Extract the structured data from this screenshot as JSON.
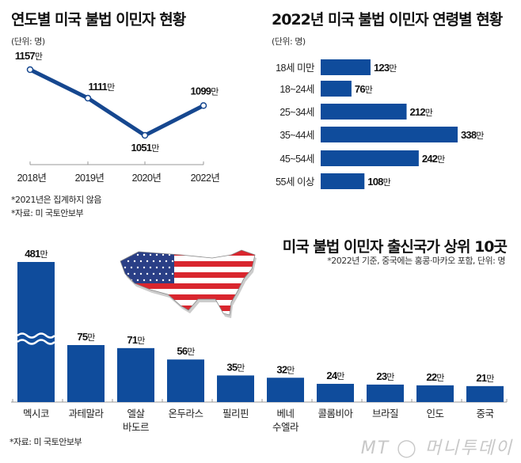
{
  "colors": {
    "bar": "#0f4c9c",
    "line": "#16478f",
    "text": "#111111",
    "logo": "#c8c8c8"
  },
  "chart_data": [
    {
      "type": "line",
      "title": "연도별 미국 불법 이민자 현황",
      "unit": "(단위: 명)",
      "categories": [
        "2018년",
        "2019년",
        "2020년",
        "2022년"
      ],
      "values": [
        11570000,
        11110000,
        10510000,
        10990000
      ],
      "labels": [
        "1157만",
        "1111만",
        "1051만",
        "1099만"
      ],
      "notes": [
        "*2021년은 집계하지 않음",
        "*자료: 미 국토안보부"
      ]
    },
    {
      "type": "bar",
      "orientation": "horizontal",
      "title": "2022년 미국 불법 이민자 연령별 현황",
      "unit": "(단위: 명)",
      "categories": [
        "18세 미만",
        "18~24세",
        "25~34세",
        "35~44세",
        "45~54세",
        "55세 이상"
      ],
      "values": [
        1230000,
        760000,
        2120000,
        3380000,
        2420000,
        1080000
      ],
      "labels": [
        "123",
        "76",
        "212",
        "338",
        "242",
        "108"
      ],
      "label_suffix": "만"
    },
    {
      "type": "bar",
      "title": "미국 불법 이민자 출신국가 상위 10곳",
      "subtitle": "*2022년 기준, 중국에는 홍콩·마카오 포함, 단위: 명",
      "categories": [
        "멕시코",
        "과테말라",
        "엘살\n바도르",
        "온두라스",
        "필리핀",
        "베네\n수엘라",
        "콜롬비아",
        "브라질",
        "인도",
        "중국"
      ],
      "values": [
        4810000,
        750000,
        710000,
        560000,
        350000,
        320000,
        240000,
        230000,
        220000,
        210000
      ],
      "labels": [
        "481",
        "75",
        "71",
        "56",
        "35",
        "32",
        "24",
        "23",
        "22",
        "21"
      ],
      "label_suffix": "만",
      "axis_break": "멕시코",
      "notes": [
        "*자료: 미 국토안보부"
      ]
    }
  ],
  "logo": "MT 머니투데이"
}
